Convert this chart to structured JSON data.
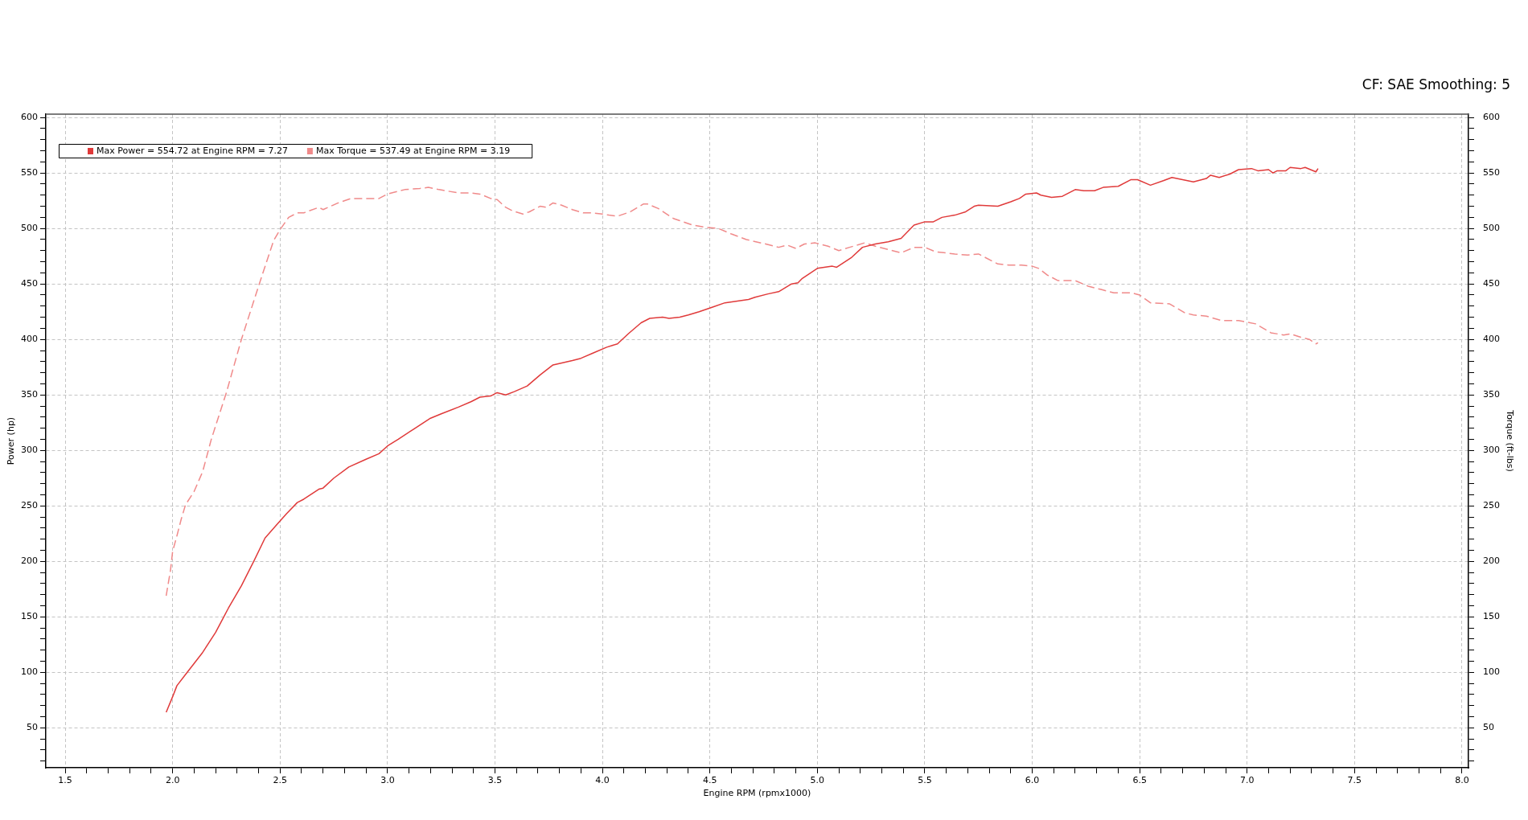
{
  "chart_data": {
    "type": "line",
    "xlabel": "Engine RPM (rpmx1000)",
    "ylabel": "Power (hp)",
    "y2label": "Torque (ft-lbs)",
    "annotations": [
      "CF: SAE Smoothing: 5"
    ],
    "xlim": [
      1.41,
      8.03
    ],
    "xticks": [
      1.5,
      {
        "value": 1.6,
        "label": null
      },
      {
        "value": 1.7,
        "label": null
      },
      {
        "value": 1.8,
        "label": null
      },
      {
        "value": 1.9,
        "label": null
      },
      {
        "value": 2,
        "label": "2.0"
      },
      {
        "value": 2.1,
        "label": null
      },
      {
        "value": 2.2,
        "label": null
      },
      {
        "value": 2.3,
        "label": null
      },
      {
        "value": 2.4,
        "label": null
      },
      2.5,
      {
        "value": 2.6,
        "label": null
      },
      {
        "value": 2.7,
        "label": null
      },
      {
        "value": 2.8,
        "label": null
      },
      {
        "value": 2.9,
        "label": null
      },
      {
        "value": 3,
        "label": "3.0"
      },
      {
        "value": 3.1,
        "label": null
      },
      {
        "value": 3.2,
        "label": null
      },
      {
        "value": 3.3,
        "label": null
      },
      {
        "value": 3.4,
        "label": null
      },
      3.5,
      {
        "value": 3.6,
        "label": null
      },
      {
        "value": 3.7,
        "label": null
      },
      {
        "value": 3.8,
        "label": null
      },
      {
        "value": 3.9,
        "label": null
      },
      {
        "value": 4,
        "label": "4.0"
      },
      {
        "value": 4.1,
        "label": null
      },
      {
        "value": 4.2,
        "label": null
      },
      {
        "value": 4.3,
        "label": null
      },
      {
        "value": 4.4,
        "label": null
      },
      4.5,
      {
        "value": 4.6,
        "label": null
      },
      {
        "value": 4.7,
        "label": null
      },
      {
        "value": 4.8,
        "label": null
      },
      {
        "value": 4.9,
        "label": null
      },
      {
        "value": 5,
        "label": "5.0"
      },
      {
        "value": 5.1,
        "label": null
      },
      {
        "value": 5.2,
        "label": null
      },
      {
        "value": 5.3,
        "label": null
      },
      {
        "value": 5.4,
        "label": null
      },
      5.5,
      {
        "value": 5.6,
        "label": null
      },
      {
        "value": 5.7,
        "label": null
      },
      {
        "value": 5.8,
        "label": null
      },
      {
        "value": 5.9,
        "label": null
      },
      {
        "value": 6,
        "label": "6.0"
      },
      {
        "value": 6.1,
        "label": null
      },
      {
        "value": 6.2,
        "label": null
      },
      {
        "value": 6.3,
        "label": null
      },
      {
        "value": 6.4,
        "label": null
      },
      6.5,
      {
        "value": 6.6,
        "label": null
      },
      {
        "value": 6.7,
        "label": null
      },
      {
        "value": 6.8,
        "label": null
      },
      {
        "value": 6.9,
        "label": null
      },
      {
        "value": 7,
        "label": "7.0"
      },
      {
        "value": 7.1,
        "label": null
      },
      {
        "value": 7.2,
        "label": null
      },
      {
        "value": 7.3,
        "label": null
      },
      {
        "value": 7.4,
        "label": null
      },
      7.5,
      {
        "value": 7.6,
        "label": null
      },
      {
        "value": 7.7,
        "label": null
      },
      {
        "value": 7.8,
        "label": null
      },
      {
        "value": 7.9,
        "label": null
      },
      {
        "value": 8,
        "label": "8.0"
      }
    ],
    "ylim": [
      14,
      603
    ],
    "yticks": [
      {
        "value": 20,
        "label": null
      },
      {
        "value": 30,
        "label": null
      },
      {
        "value": 40,
        "label": null
      },
      50,
      {
        "value": 60,
        "label": null
      },
      {
        "value": 70,
        "label": null
      },
      {
        "value": 80,
        "label": null
      },
      {
        "value": 90,
        "label": null
      },
      100,
      {
        "value": 110,
        "label": null
      },
      {
        "value": 120,
        "label": null
      },
      {
        "value": 130,
        "label": null
      },
      {
        "value": 140,
        "label": null
      },
      150,
      {
        "value": 160,
        "label": null
      },
      {
        "value": 170,
        "label": null
      },
      {
        "value": 180,
        "label": null
      },
      {
        "value": 190,
        "label": null
      },
      200,
      {
        "value": 210,
        "label": null
      },
      {
        "value": 220,
        "label": null
      },
      {
        "value": 230,
        "label": null
      },
      {
        "value": 240,
        "label": null
      },
      250,
      {
        "value": 260,
        "label": null
      },
      {
        "value": 270,
        "label": null
      },
      {
        "value": 280,
        "label": null
      },
      {
        "value": 290,
        "label": null
      },
      300,
      {
        "value": 310,
        "label": null
      },
      {
        "value": 320,
        "label": null
      },
      {
        "value": 330,
        "label": null
      },
      {
        "value": 340,
        "label": null
      },
      350,
      {
        "value": 360,
        "label": null
      },
      {
        "value": 370,
        "label": null
      },
      {
        "value": 380,
        "label": null
      },
      {
        "value": 390,
        "label": null
      },
      400,
      {
        "value": 410,
        "label": null
      },
      {
        "value": 420,
        "label": null
      },
      {
        "value": 430,
        "label": null
      },
      {
        "value": 440,
        "label": null
      },
      450,
      {
        "value": 460,
        "label": null
      },
      {
        "value": 470,
        "label": null
      },
      {
        "value": 480,
        "label": null
      },
      {
        "value": 490,
        "label": null
      },
      500,
      {
        "value": 510,
        "label": null
      },
      {
        "value": 520,
        "label": null
      },
      {
        "value": 530,
        "label": null
      },
      {
        "value": 540,
        "label": null
      },
      550,
      {
        "value": 560,
        "label": null
      },
      {
        "value": 570,
        "label": null
      },
      {
        "value": 580,
        "label": null
      },
      {
        "value": 590,
        "label": null
      },
      600
    ],
    "y2lim": [
      14,
      603
    ],
    "y2ticks": [
      {
        "value": 20,
        "label": null
      },
      {
        "value": 30,
        "label": null
      },
      {
        "value": 40,
        "label": null
      },
      50,
      {
        "value": 60,
        "label": null
      },
      {
        "value": 70,
        "label": null
      },
      {
        "value": 80,
        "label": null
      },
      {
        "value": 90,
        "label": null
      },
      100,
      {
        "value": 110,
        "label": null
      },
      {
        "value": 120,
        "label": null
      },
      {
        "value": 130,
        "label": null
      },
      {
        "value": 140,
        "label": null
      },
      150,
      {
        "value": 160,
        "label": null
      },
      {
        "value": 170,
        "label": null
      },
      {
        "value": 180,
        "label": null
      },
      {
        "value": 190,
        "label": null
      },
      200,
      {
        "value": 210,
        "label": null
      },
      {
        "value": 220,
        "label": null
      },
      {
        "value": 230,
        "label": null
      },
      {
        "value": 240,
        "label": null
      },
      250,
      {
        "value": 260,
        "label": null
      },
      {
        "value": 270,
        "label": null
      },
      {
        "value": 280,
        "label": null
      },
      {
        "value": 290,
        "label": null
      },
      300,
      {
        "value": 310,
        "label": null
      },
      {
        "value": 320,
        "label": null
      },
      {
        "value": 330,
        "label": null
      },
      {
        "value": 340,
        "label": null
      },
      350,
      {
        "value": 360,
        "label": null
      },
      {
        "value": 370,
        "label": null
      },
      {
        "value": 380,
        "label": null
      },
      {
        "value": 390,
        "label": null
      },
      400,
      {
        "value": 410,
        "label": null
      },
      {
        "value": 420,
        "label": null
      },
      {
        "value": 430,
        "label": null
      },
      {
        "value": 440,
        "label": null
      },
      450,
      {
        "value": 460,
        "label": null
      },
      {
        "value": 470,
        "label": null
      },
      {
        "value": 480,
        "label": null
      },
      {
        "value": 490,
        "label": null
      },
      500,
      {
        "value": 510,
        "label": null
      },
      {
        "value": 520,
        "label": null
      },
      {
        "value": 530,
        "label": null
      },
      {
        "value": 540,
        "label": null
      },
      550,
      {
        "value": 560,
        "label": null
      },
      {
        "value": 570,
        "label": null
      },
      {
        "value": 580,
        "label": null
      },
      {
        "value": 590,
        "label": null
      },
      600
    ],
    "grid": true,
    "legend": "top left",
    "series": [
      {
        "name": "Max Power = 554.72 at Engine RPM = 7.27",
        "color": "#e03a3a",
        "line_style": "solid",
        "x": [
          1.97,
          2.0,
          2.02,
          2.06,
          2.1,
          2.14,
          2.2,
          2.26,
          2.32,
          2.38,
          2.43,
          2.48,
          2.53,
          2.58,
          2.61,
          2.68,
          2.7,
          2.75,
          2.82,
          2.9,
          2.96,
          3.0,
          3.05,
          3.12,
          3.2,
          3.25,
          3.33,
          3.39,
          3.43,
          3.48,
          3.51,
          3.55,
          3.59,
          3.65,
          3.71,
          3.77,
          3.86,
          3.9,
          3.96,
          4.02,
          4.07,
          4.12,
          4.18,
          4.22,
          4.28,
          4.31,
          4.36,
          4.4,
          4.45,
          4.51,
          4.57,
          4.68,
          4.71,
          4.77,
          4.82,
          4.88,
          4.91,
          4.93,
          5.0,
          5.07,
          5.09,
          5.16,
          5.21,
          5.27,
          5.33,
          5.39,
          5.45,
          5.5,
          5.54,
          5.58,
          5.64,
          5.69,
          5.73,
          5.75,
          5.84,
          5.9,
          5.94,
          5.97,
          6.02,
          6.04,
          6.09,
          6.14,
          6.2,
          6.24,
          6.29,
          6.33,
          6.4,
          6.46,
          6.49,
          6.55,
          6.61,
          6.65,
          6.75,
          6.81,
          6.83,
          6.87,
          6.92,
          6.96,
          7.02,
          7.05,
          7.1,
          7.12,
          7.14,
          7.18,
          7.2,
          7.25,
          7.27,
          7.32,
          7.33
        ],
        "values": [
          64,
          78,
          88,
          98,
          108,
          118,
          136,
          158,
          178,
          201,
          221,
          232,
          243,
          253,
          256,
          265,
          266,
          275,
          285,
          292,
          297,
          304,
          310,
          319,
          329,
          333,
          339,
          344,
          348,
          349,
          352,
          350,
          353,
          358,
          368,
          377,
          381,
          383,
          388,
          393,
          396,
          405,
          415,
          419,
          420,
          419,
          420,
          422,
          425,
          429,
          433,
          436,
          438,
          441,
          443,
          450,
          451,
          455,
          464,
          466,
          465,
          474,
          483,
          486,
          488,
          491,
          503,
          506,
          506,
          510,
          512,
          515,
          520,
          521,
          520,
          524,
          527,
          531,
          532,
          530,
          528,
          529,
          535,
          534,
          534,
          537,
          538,
          544,
          544,
          539,
          543,
          546,
          542,
          545,
          548,
          546,
          549,
          553,
          554,
          552,
          553,
          550,
          552,
          552,
          555,
          554,
          555,
          551,
          554
        ]
      },
      {
        "name": "Max Torque = 537.49 at Engine RPM = 3.19",
        "color": "#f08a8a",
        "line_style": "dashed",
        "x": [
          1.97,
          1.99,
          2.0,
          2.02,
          2.04,
          2.06,
          2.1,
          2.14,
          2.18,
          2.25,
          2.32,
          2.41,
          2.47,
          2.5,
          2.54,
          2.58,
          2.61,
          2.68,
          2.7,
          2.77,
          2.83,
          2.9,
          2.96,
          3.0,
          3.08,
          3.15,
          3.19,
          3.24,
          3.33,
          3.39,
          3.43,
          3.48,
          3.51,
          3.55,
          3.58,
          3.63,
          3.66,
          3.71,
          3.74,
          3.77,
          3.81,
          3.86,
          3.91,
          3.95,
          4.0,
          4.03,
          4.07,
          4.13,
          4.19,
          4.21,
          4.26,
          4.33,
          4.36,
          4.42,
          4.48,
          4.54,
          4.6,
          4.67,
          4.76,
          4.82,
          4.86,
          4.9,
          4.94,
          4.99,
          5.05,
          5.1,
          5.15,
          5.22,
          5.27,
          5.33,
          5.39,
          5.45,
          5.5,
          5.55,
          5.64,
          5.7,
          5.75,
          5.84,
          5.89,
          5.95,
          6.0,
          6.03,
          6.07,
          6.12,
          6.2,
          6.26,
          6.32,
          6.38,
          6.46,
          6.5,
          6.55,
          6.64,
          6.71,
          6.75,
          6.81,
          6.88,
          6.96,
          7.04,
          7.11,
          7.17,
          7.2,
          7.25,
          7.29,
          7.32,
          7.33
        ],
        "values": [
          169,
          192,
          209,
          223,
          238,
          251,
          263,
          281,
          310,
          352,
          400,
          454,
          489,
          499,
          510,
          514,
          514,
          519,
          517,
          523,
          527,
          527,
          527,
          531,
          535,
          536,
          537,
          535,
          532,
          532,
          531,
          527,
          526,
          519,
          516,
          513,
          515,
          520,
          519,
          523,
          521,
          517,
          514,
          514,
          513,
          512,
          511,
          515,
          522,
          522,
          518,
          509,
          507,
          503,
          501,
          500,
          495,
          490,
          486,
          483,
          485,
          482,
          486,
          487,
          484,
          480,
          483,
          487,
          484,
          481,
          478,
          483,
          483,
          479,
          477,
          476,
          477,
          468,
          467,
          467,
          466,
          464,
          458,
          453,
          453,
          448,
          445,
          442,
          442,
          440,
          433,
          432,
          424,
          422,
          421,
          417,
          417,
          414,
          406,
          404,
          405,
          402,
          400,
          396,
          397
        ]
      }
    ]
  }
}
